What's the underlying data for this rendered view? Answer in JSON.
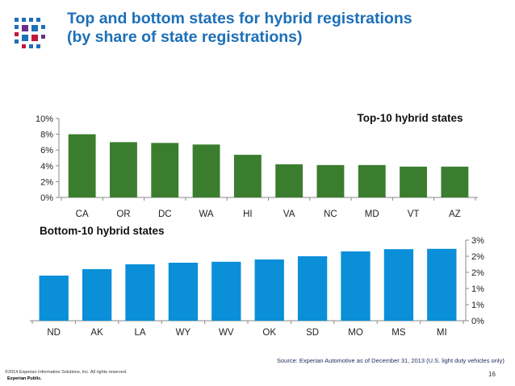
{
  "page": {
    "title_line1": "Top and bottom states for hybrid registrations",
    "title_line2": "(by share of state registrations)",
    "source": "Source: Experian Automotive as of December 31, 2013 (U.S. light duty vehicles only)",
    "copyright": "©2014 Experian Information Solutions, Inc. All rights reserved.",
    "classification": "Experian Public.",
    "page_number": "16"
  },
  "colors": {
    "title": "#1d6fb8",
    "top_bars": "#3a7d2e",
    "bottom_bars": "#0a8fd8",
    "axis": "#888888",
    "logo_a": "#1d6fb8",
    "logo_b": "#c0183c",
    "logo_c": "#6b2c8a"
  },
  "chart_data": [
    {
      "type": "bar",
      "title": "Top-10 hybrid states",
      "categories": [
        "CA",
        "OR",
        "DC",
        "WA",
        "HI",
        "VA",
        "NC",
        "MD",
        "VT",
        "AZ"
      ],
      "values": [
        8.0,
        7.0,
        6.9,
        6.7,
        5.4,
        4.2,
        4.1,
        4.1,
        3.9,
        3.9
      ],
      "ylim": [
        0,
        10
      ],
      "yticks": [
        0,
        2,
        4,
        6,
        8,
        10
      ],
      "ytick_labels": [
        "0%",
        "2%",
        "4%",
        "6%",
        "8%",
        "10%"
      ],
      "xlabel": "",
      "ylabel": "",
      "legend": "none",
      "grid": false
    },
    {
      "type": "bar",
      "title": "Bottom-10 hybrid states",
      "categories": [
        "ND",
        "AK",
        "LA",
        "WY",
        "WV",
        "OK",
        "SD",
        "MO",
        "MS",
        "MI"
      ],
      "values": [
        1.4,
        1.6,
        1.75,
        1.8,
        1.83,
        1.9,
        2.0,
        2.15,
        2.22,
        2.23
      ],
      "ylim": [
        0,
        2.5
      ],
      "yticks": [
        0,
        0.5,
        1,
        1.5,
        2,
        2.5
      ],
      "ytick_labels": [
        "0%",
        "1%",
        "1%",
        "2%",
        "2%",
        "3%"
      ],
      "xlabel": "",
      "ylabel": "",
      "legend": "none",
      "grid": false
    }
  ]
}
